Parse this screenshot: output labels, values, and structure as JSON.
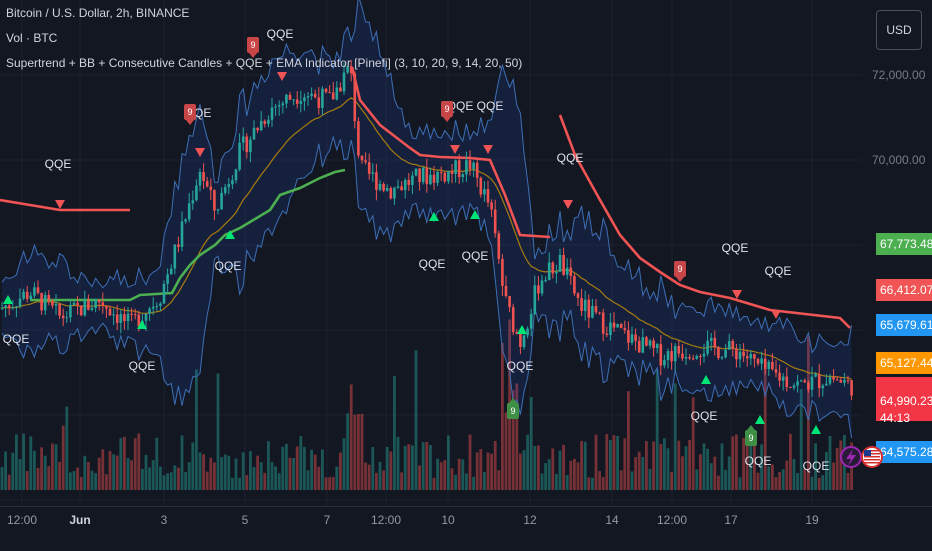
{
  "legend": {
    "symbol": "Bitcoin / U.S. Dollar, 2h, BINANCE",
    "volume": "Vol · BTC",
    "indicator": "Supertrend + BB + Consecutive Candles + QQE + EMA Indicator [Pinefi] (3, 10, 20, 9, 14, 20, 50)"
  },
  "currency_button": "USD",
  "colors": {
    "background": "#131722",
    "bull": "#26a69a",
    "bear": "#ef5350",
    "supertrend_up": "#4caf50",
    "supertrend_down": "#f05454",
    "bb": "#2962ff",
    "ema": "#b8860b",
    "qqe_buy": "#00e676",
    "qqe_sell": "#f05454"
  },
  "chart_data": {
    "type": "candlestick",
    "y_ticks": [
      "72,000.00",
      "70,000.00"
    ],
    "x_ticks": [
      "12:00",
      "Jun",
      "3",
      "5",
      "7",
      "12:00",
      "10",
      "12",
      "14",
      "12:00",
      "17",
      "19"
    ],
    "ylim": [
      63800,
      73100
    ],
    "price_labels": [
      {
        "value": "67,773.48",
        "color": "#4caf50"
      },
      {
        "value": "66,412.07",
        "color": "#f05454"
      },
      {
        "value": "65,679.61",
        "color": "#2196f3"
      },
      {
        "value": "65,127.44",
        "color": "#ff9800"
      },
      {
        "value": "64,990.23",
        "color": "#f23645"
      },
      {
        "value": "44:13",
        "color": "#f23645"
      },
      {
        "value": "64,575.28",
        "color": "#2196f3"
      }
    ],
    "annotations": {
      "qqe_text": "QQE",
      "count_text": "9"
    }
  }
}
